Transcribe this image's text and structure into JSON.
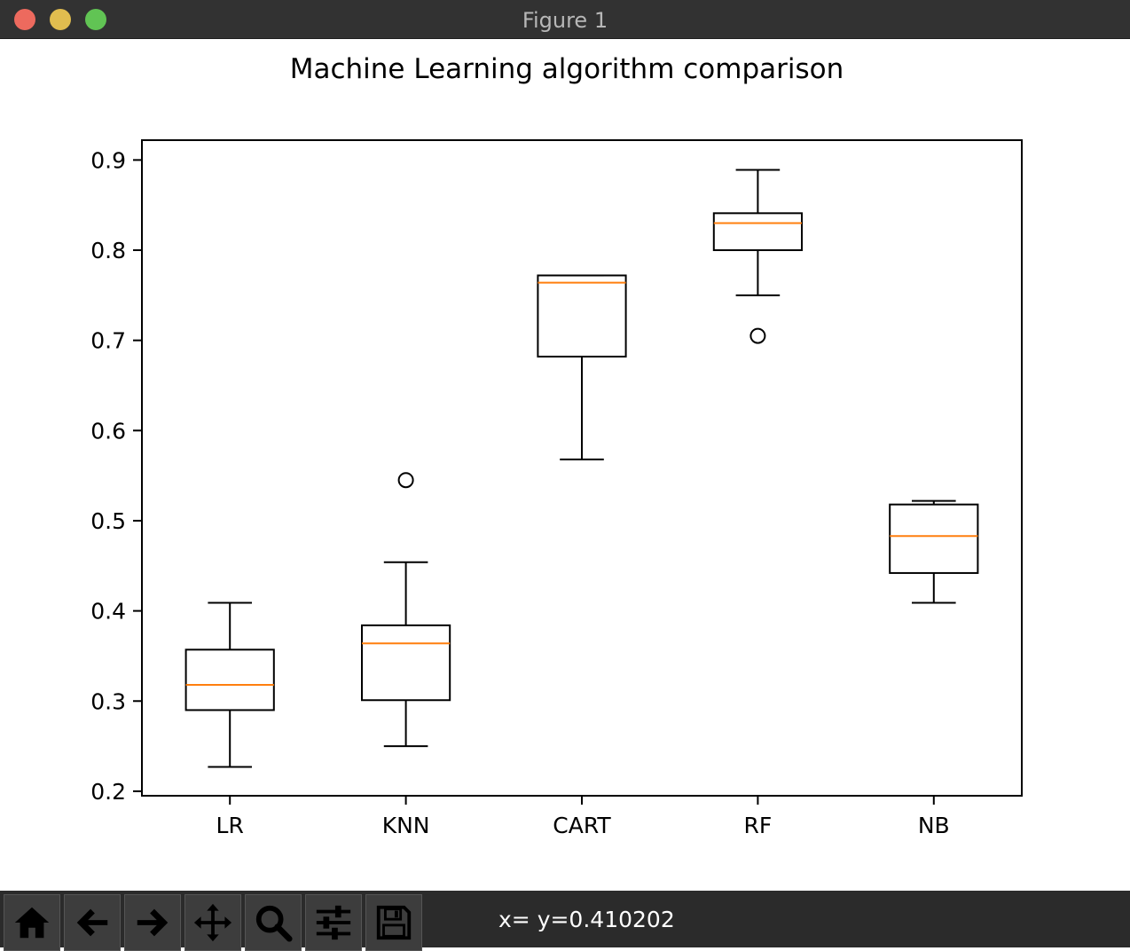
{
  "window": {
    "title": "Figure 1"
  },
  "toolbar": {
    "buttons": [
      {
        "icon": "home-icon"
      },
      {
        "icon": "back-arrow-icon"
      },
      {
        "icon": "forward-arrow-icon"
      },
      {
        "icon": "pan-icon"
      },
      {
        "icon": "zoom-icon"
      },
      {
        "icon": "subplots-config-icon"
      },
      {
        "icon": "save-icon"
      }
    ],
    "coords_text": "x= y=0.410202"
  },
  "chart_data": {
    "type": "box",
    "title": "Machine Learning algorithm comparison",
    "categories": [
      "LR",
      "KNN",
      "CART",
      "RF",
      "NB"
    ],
    "boxes": [
      {
        "whisker_low": 0.227,
        "q1": 0.29,
        "median": 0.318,
        "q3": 0.357,
        "whisker_high": 0.409,
        "outliers": []
      },
      {
        "whisker_low": 0.25,
        "q1": 0.301,
        "median": 0.364,
        "q3": 0.384,
        "whisker_high": 0.454,
        "outliers": [
          0.545
        ]
      },
      {
        "whisker_low": 0.568,
        "q1": 0.682,
        "median": 0.764,
        "q3": 0.772,
        "whisker_high": 0.772,
        "outliers": []
      },
      {
        "whisker_low": 0.75,
        "q1": 0.8,
        "median": 0.83,
        "q3": 0.841,
        "whisker_high": 0.889,
        "outliers": [
          0.705
        ]
      },
      {
        "whisker_low": 0.409,
        "q1": 0.442,
        "median": 0.483,
        "q3": 0.518,
        "whisker_high": 0.522,
        "outliers": []
      }
    ],
    "ylim": [
      0.195,
      0.922
    ],
    "yticks": [
      0.2,
      0.3,
      0.4,
      0.5,
      0.6,
      0.7,
      0.8,
      0.9
    ],
    "ytick_labels": [
      "0.2",
      "0.3",
      "0.4",
      "0.5",
      "0.6",
      "0.7",
      "0.8",
      "0.9"
    ],
    "grid": false,
    "colors": {
      "box": "#000000",
      "median": "#ff7f0e"
    }
  }
}
